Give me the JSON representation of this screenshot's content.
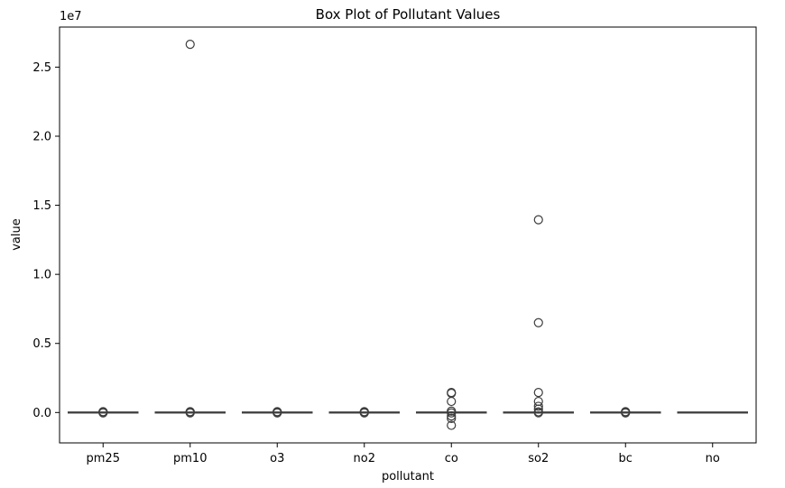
{
  "chart_data": {
    "type": "box",
    "title": "Box Plot of Pollutant Values",
    "xlabel": "pollutant",
    "ylabel": "value",
    "y_scale_label": "1e7",
    "ylim": [
      -2200000,
      27900000
    ],
    "yticks": [
      0,
      5000000,
      10000000,
      15000000,
      20000000,
      25000000
    ],
    "ytick_labels": [
      "0.0",
      "0.5",
      "1.0",
      "1.5",
      "2.0",
      "2.5"
    ],
    "grid": false,
    "colors": {
      "box_edge": "#3d3d3d",
      "axis": "#000000",
      "background": "#ffffff"
    },
    "categories": [
      "pm25",
      "pm10",
      "o3",
      "no2",
      "co",
      "so2",
      "bc",
      "no"
    ],
    "boxes": [
      {
        "name": "pm25",
        "q1": 0,
        "median": 10,
        "q3": 30,
        "whisker_low": 0,
        "whisker_high": 60,
        "outliers": [
          60000,
          40000,
          -30000
        ]
      },
      {
        "name": "pm10",
        "q1": 0,
        "median": 20,
        "q3": 50,
        "whisker_low": 0,
        "whisker_high": 100,
        "outliers": [
          26650000,
          60000,
          40000,
          -30000
        ]
      },
      {
        "name": "o3",
        "q1": 0,
        "median": 20,
        "q3": 40,
        "whisker_low": 0,
        "whisker_high": 80,
        "outliers": [
          60000,
          30000,
          -30000
        ]
      },
      {
        "name": "no2",
        "q1": 0,
        "median": 10,
        "q3": 30,
        "whisker_low": 0,
        "whisker_high": 60,
        "outliers": [
          60000,
          30000,
          -30000
        ]
      },
      {
        "name": "co",
        "q1": 0,
        "median": 200,
        "q3": 500,
        "whisker_low": 0,
        "whisker_high": 1000,
        "outliers": [
          1450000,
          1390000,
          800000,
          100000,
          -30000,
          -250000,
          -430000,
          -930000
        ]
      },
      {
        "name": "so2",
        "q1": 0,
        "median": 5,
        "q3": 15,
        "whisker_low": 0,
        "whisker_high": 30,
        "outliers": [
          13950000,
          6500000,
          1450000,
          800000,
          450000,
          250000,
          50000,
          -20000
        ]
      },
      {
        "name": "bc",
        "q1": 0,
        "median": 1,
        "q3": 3,
        "whisker_low": 0,
        "whisker_high": 6,
        "outliers": [
          60000,
          30000,
          -30000
        ]
      },
      {
        "name": "no",
        "q1": 0,
        "median": 5,
        "q3": 10,
        "whisker_low": 0,
        "whisker_high": 20,
        "outliers": []
      }
    ]
  }
}
